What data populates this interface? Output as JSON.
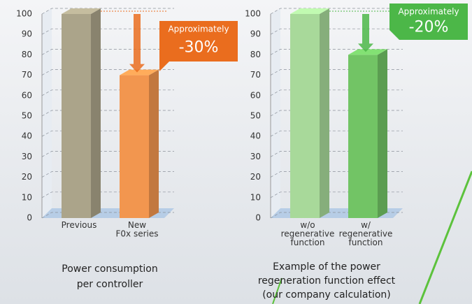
{
  "chart_data": [
    {
      "type": "bar3d",
      "caption": "Power consumption\nper controller",
      "categories": [
        "Previous",
        "New\nF0x series"
      ],
      "values": [
        100,
        70
      ],
      "colors": [
        "#aba48a",
        "#f2964f"
      ],
      "ylim": [
        0,
        100
      ],
      "yticks": [
        0,
        10,
        20,
        30,
        40,
        50,
        60,
        70,
        80,
        90,
        100
      ],
      "grid": true,
      "annotation": {
        "lines": [
          "Approximately",
          "-30%"
        ],
        "color": "#ea6d1e"
      }
    },
    {
      "type": "bar3d",
      "caption": "Example of the power\nregeneration function effect\n(our company calculation)",
      "categories": [
        "w/o\nregenerative\nfunction",
        "w/\nregenerative\nfunction"
      ],
      "values": [
        100,
        80
      ],
      "colors": [
        "#a8d99a",
        "#72c465"
      ],
      "ylim": [
        0,
        100
      ],
      "yticks": [
        0,
        10,
        20,
        30,
        40,
        50,
        60,
        70,
        80,
        90,
        100
      ],
      "grid": true,
      "annotation": {
        "lines": [
          "Approximately",
          "-20%"
        ],
        "color": "#4cb748"
      }
    }
  ]
}
